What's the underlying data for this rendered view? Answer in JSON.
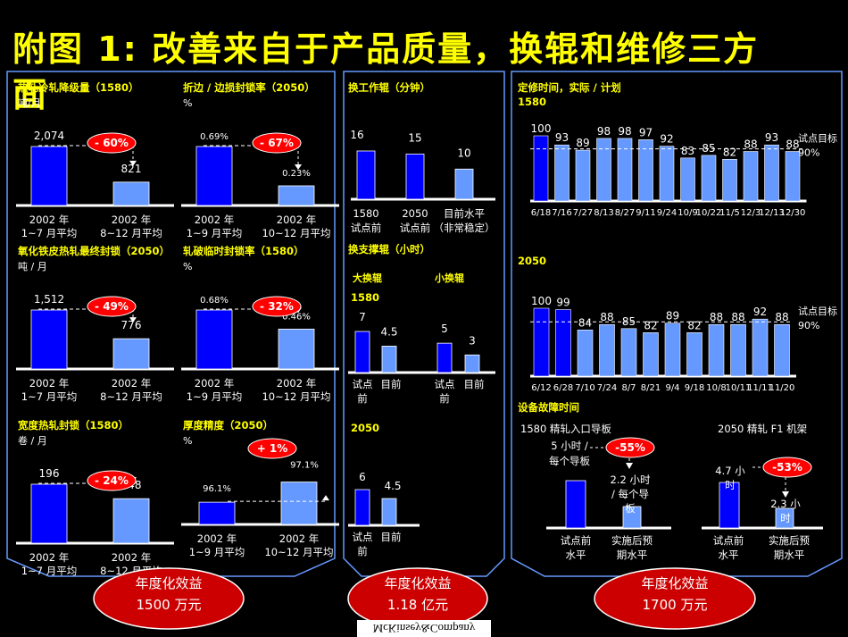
{
  "title_line1": "附图 1: 改善来自于产品质量，换辊和维修三方",
  "title_line2": "面",
  "colors": {
    "dark_bar": "#0000ff",
    "light_bar": "#6699ff",
    "accent": "#ffff00",
    "badge": "#ff0000",
    "panel_border": "#6699ff",
    "ellipse": "#cc0000"
  },
  "footer_brand": "McKinsey&Company",
  "benefits": [
    {
      "label": "年度化效益",
      "value": "1500 万元"
    },
    {
      "label": "年度化效益",
      "value": "1.18 亿元"
    },
    {
      "label": "年度化效益",
      "value": "1700 万元"
    }
  ],
  "chart_data": [
    {
      "type": "bar",
      "id": "c1",
      "title": "热轧冷轧降级量（1580）",
      "unit": "吨/月",
      "categories": [
        [
          "2002 年",
          "1~7 月平均"
        ],
        [
          "2002 年",
          "8~12 月平均"
        ]
      ],
      "values": [
        2074,
        821
      ],
      "value_labels": [
        "2,074",
        "821"
      ],
      "change": "- 60%"
    },
    {
      "type": "bar",
      "id": "c2",
      "title": "折边 / 边损封锁率（2050）",
      "unit": "%",
      "categories": [
        [
          "2002 年",
          "1~9 月平均"
        ],
        [
          "2002 年",
          "10~12 月平均"
        ]
      ],
      "values": [
        0.69,
        0.23
      ],
      "value_labels": [
        "0.69%",
        "0.23%"
      ],
      "change": "- 67%"
    },
    {
      "type": "bar",
      "id": "c3",
      "title": "氧化铁皮热轧最终封锁（2050）",
      "unit": "吨 / 月",
      "categories": [
        [
          "2002 年",
          "1~7 月平均"
        ],
        [
          "2002 年",
          "8~12 月平均"
        ]
      ],
      "values": [
        1512,
        776
      ],
      "value_labels": [
        "1,512",
        "776"
      ],
      "change": "- 49%"
    },
    {
      "type": "bar",
      "id": "c4",
      "title": "轧破临时封锁率（1580）",
      "unit": "%",
      "categories": [
        [
          "2002 年",
          "1~9 月平均"
        ],
        [
          "2002 年",
          "10~12 月平均"
        ]
      ],
      "values": [
        0.68,
        0.46
      ],
      "value_labels": [
        "0.68%",
        "0.46%"
      ],
      "change": "- 32%"
    },
    {
      "type": "bar",
      "id": "c5",
      "title": "宽度热轧封锁（1580）",
      "unit": "卷 / 月",
      "categories": [
        [
          "2002 年",
          "1~7 月平均"
        ],
        [
          "2002 年",
          "8~12 月平均"
        ]
      ],
      "values": [
        196,
        148
      ],
      "value_labels": [
        "196",
        "148"
      ],
      "change": "- 24%"
    },
    {
      "type": "bar",
      "id": "c6",
      "title": "厚度精度（2050）",
      "unit": "%",
      "categories": [
        [
          "2002 年",
          "1~9 月平均"
        ],
        [
          "2002 年",
          "10~12 月平均"
        ]
      ],
      "values": [
        96.1,
        97.1
      ],
      "value_labels": [
        "96.1%",
        "97.1%"
      ],
      "change": "+ 1%"
    },
    {
      "type": "bar",
      "id": "c7",
      "title": "换工作辊（分钟）",
      "categories": [
        [
          "1580",
          "试点前"
        ],
        [
          "2050",
          "试点前"
        ],
        [
          "目前水平",
          "（非常稳定）"
        ]
      ],
      "values": [
        16,
        15,
        10
      ],
      "value_labels": [
        "16",
        "15",
        "10"
      ]
    },
    {
      "type": "bar",
      "id": "c8",
      "title": "换支撑辊（小时）",
      "subtitle": "1580",
      "groups": [
        "大换辊",
        "小换辊"
      ],
      "categories": [
        [
          "试点",
          "前"
        ],
        [
          "目前"
        ],
        [
          "试点",
          "前"
        ],
        [
          "目前"
        ]
      ],
      "values": [
        7,
        4.5,
        5,
        3
      ],
      "value_labels": [
        "7",
        "4.5",
        "5",
        "3"
      ]
    },
    {
      "type": "bar",
      "id": "c9",
      "subtitle": "2050",
      "categories": [
        [
          "试点",
          "前"
        ],
        [
          "目前"
        ]
      ],
      "values": [
        6,
        4.5
      ],
      "value_labels": [
        "6",
        "4.5"
      ]
    },
    {
      "type": "bar",
      "id": "c10",
      "title": "定修时间，实际 / 计划",
      "subtitle": "1580",
      "categories": [
        "6/18",
        "7/16",
        "7/27",
        "8/13",
        "8/27",
        "9/11",
        "9/24",
        "10/9",
        "10/22",
        "11/5",
        "12/3",
        "12/13",
        "12/30"
      ],
      "values": [
        100,
        93,
        89,
        98,
        98,
        97,
        92,
        83,
        85,
        82,
        88,
        93,
        88
      ],
      "target": 90,
      "target_label": "试点目标 90%"
    },
    {
      "type": "bar",
      "id": "c11",
      "subtitle": "2050",
      "categories": [
        "6/12",
        "6/28",
        "7/10",
        "7/24",
        "8/7",
        "8/21",
        "9/4",
        "9/18",
        "10/8",
        "10/11",
        "11/11",
        "11/20"
      ],
      "values": [
        100,
        99,
        84,
        88,
        85,
        82,
        89,
        82,
        88,
        88,
        92,
        88
      ],
      "target": 90,
      "target_label": "试点目标 90%"
    },
    {
      "type": "bar",
      "id": "c12",
      "title": "设备故障时间",
      "subtitle": "1580 精轧入口导板",
      "categories": [
        [
          "试点前",
          "水平"
        ],
        [
          "实施后预",
          "期水平"
        ]
      ],
      "values": [
        5,
        2.2
      ],
      "value_labels": [
        "5 小时 / 每个导板",
        "2.2 小时 / 每个导板"
      ],
      "change": "-55%"
    },
    {
      "type": "bar",
      "id": "c13",
      "subtitle": "2050 精轧 F1 机架",
      "categories": [
        [
          "试点前",
          "水平"
        ],
        [
          "实施后预",
          "期水平"
        ]
      ],
      "values": [
        4.7,
        2.3
      ],
      "value_labels": [
        "4.7 小时",
        "2.3 小时"
      ],
      "change": "-53%"
    }
  ]
}
